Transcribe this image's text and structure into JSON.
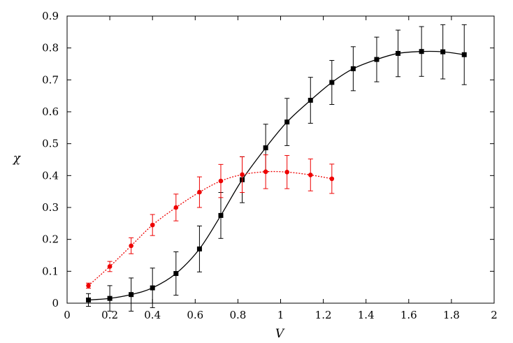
{
  "chart_data": {
    "type": "scatter",
    "title": "",
    "xlabel": "V",
    "ylabel": "χ",
    "xlim": [
      0,
      2
    ],
    "ylim": [
      0,
      0.9
    ],
    "xticks": [
      0,
      0.2,
      0.4,
      0.6,
      0.8,
      1,
      1.2,
      1.4,
      1.6,
      1.8,
      2
    ],
    "xtick_labels": [
      "0",
      "0.2",
      "0.4",
      "0.6",
      "0.8",
      "1",
      "1.2",
      "1.4",
      "1.6",
      "1.8",
      "2"
    ],
    "yticks": [
      0,
      0.1,
      0.2,
      0.3,
      0.4,
      0.5,
      0.6,
      0.7,
      0.8,
      0.9
    ],
    "ytick_labels": [
      "0",
      "0.1",
      "0.2",
      "0.3",
      "0.4",
      "0.5",
      "0.6",
      "0.7",
      "0.8",
      "0.9"
    ],
    "grid": false,
    "series": [
      {
        "color": "#000000",
        "marker": "square",
        "line": "solid",
        "x": [
          0.1,
          0.2,
          0.3,
          0.4,
          0.51,
          0.62,
          0.72,
          0.82,
          0.93,
          1.03,
          1.14,
          1.24,
          1.34,
          1.45,
          1.55,
          1.66,
          1.76,
          1.86
        ],
        "y": [
          0.01,
          0.015,
          0.027,
          0.048,
          0.093,
          0.17,
          0.275,
          0.387,
          0.487,
          0.568,
          0.636,
          0.692,
          0.735,
          0.764,
          0.783,
          0.789,
          0.788,
          0.779
        ],
        "err": [
          0.02,
          0.04,
          0.052,
          0.062,
          0.068,
          0.072,
          0.072,
          0.072,
          0.074,
          0.074,
          0.072,
          0.069,
          0.069,
          0.07,
          0.073,
          0.078,
          0.085,
          0.094
        ]
      },
      {
        "color": "#ee0000",
        "marker": "circle",
        "line": "dotted",
        "x": [
          0.1,
          0.2,
          0.3,
          0.4,
          0.51,
          0.62,
          0.72,
          0.82,
          0.93,
          1.03,
          1.14,
          1.24
        ],
        "y": [
          0.055,
          0.115,
          0.18,
          0.245,
          0.3,
          0.348,
          0.383,
          0.403,
          0.412,
          0.411,
          0.402,
          0.39
        ],
        "err": [
          0.008,
          0.016,
          0.025,
          0.033,
          0.042,
          0.048,
          0.052,
          0.056,
          0.053,
          0.052,
          0.05,
          0.046
        ]
      }
    ]
  }
}
